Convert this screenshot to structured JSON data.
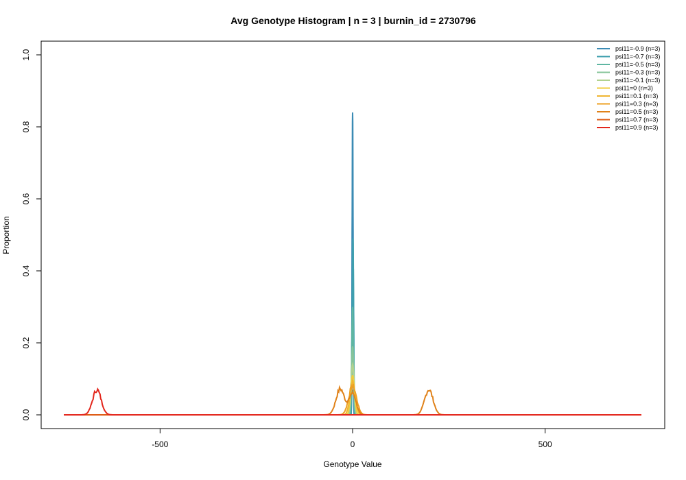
{
  "chart_data": {
    "type": "line",
    "title": "Avg Genotype Histogram | n = 3 | burnin_id = 2730796",
    "xlabel": "Genotype Value",
    "ylabel": "Proportion",
    "xlim": [
      -750,
      750
    ],
    "ylim": [
      0,
      1.0
    ],
    "xticks": [
      -500,
      0,
      500
    ],
    "xtick_labels": [
      "-500",
      "0",
      "500"
    ],
    "yticks": [
      0.0,
      0.2,
      0.4,
      0.6,
      0.8,
      1.0
    ],
    "ytick_labels": [
      "0.0",
      "0.2",
      "0.4",
      "0.6",
      "0.8",
      "1.0"
    ],
    "grid": false,
    "legend_position": "top-right",
    "series": [
      {
        "name": "psi11=-0.9 (n=3)",
        "color": "#3b8bb4",
        "peaks": [
          {
            "center": 0,
            "height": 0.84,
            "width": 1.2
          }
        ]
      },
      {
        "name": "psi11=-0.7 (n=3)",
        "color": "#3e9fae",
        "peaks": [
          {
            "center": 1,
            "height": 0.49,
            "width": 1.6
          }
        ]
      },
      {
        "name": "psi11=-0.5 (n=3)",
        "color": "#5fb6a2",
        "peaks": [
          {
            "center": 0,
            "height": 0.3,
            "width": 2.2
          }
        ]
      },
      {
        "name": "psi11=-0.3 (n=3)",
        "color": "#86c49a",
        "peaks": [
          {
            "center": 0,
            "height": 0.19,
            "width": 3
          }
        ]
      },
      {
        "name": "psi11=-0.1 (n=3)",
        "color": "#b1d28e",
        "peaks": [
          {
            "center": 0,
            "height": 0.14,
            "width": 4
          }
        ]
      },
      {
        "name": "psi11=0 (n=3)",
        "color": "#f1cc3c",
        "peaks": [
          {
            "center": 0,
            "height": 0.11,
            "width": 5
          }
        ]
      },
      {
        "name": "psi11=0.1 (n=3)",
        "color": "#f0b531",
        "peaks": [
          {
            "center": 0,
            "height": 0.09,
            "width": 7
          }
        ]
      },
      {
        "name": "psi11=0.3 (n=3)",
        "color": "#eda023",
        "peaks": [
          {
            "center": 0,
            "height": 0.08,
            "width": 10
          }
        ]
      },
      {
        "name": "psi11=0.5 (n=3)",
        "color": "#e0821a",
        "peaks": [
          {
            "center": -32,
            "height": 0.072,
            "width": 11
          },
          {
            "center": 0,
            "height": 0.06,
            "width": 9
          },
          {
            "center": 198,
            "height": 0.07,
            "width": 11
          }
        ]
      },
      {
        "name": "psi11=0.7 (n=3)",
        "color": "#dd5a12",
        "peaks": []
      },
      {
        "name": "psi11=0.9 (n=3)",
        "color": "#e3261c",
        "peaks": [
          {
            "center": -664,
            "height": 0.07,
            "width": 11
          }
        ]
      }
    ]
  }
}
